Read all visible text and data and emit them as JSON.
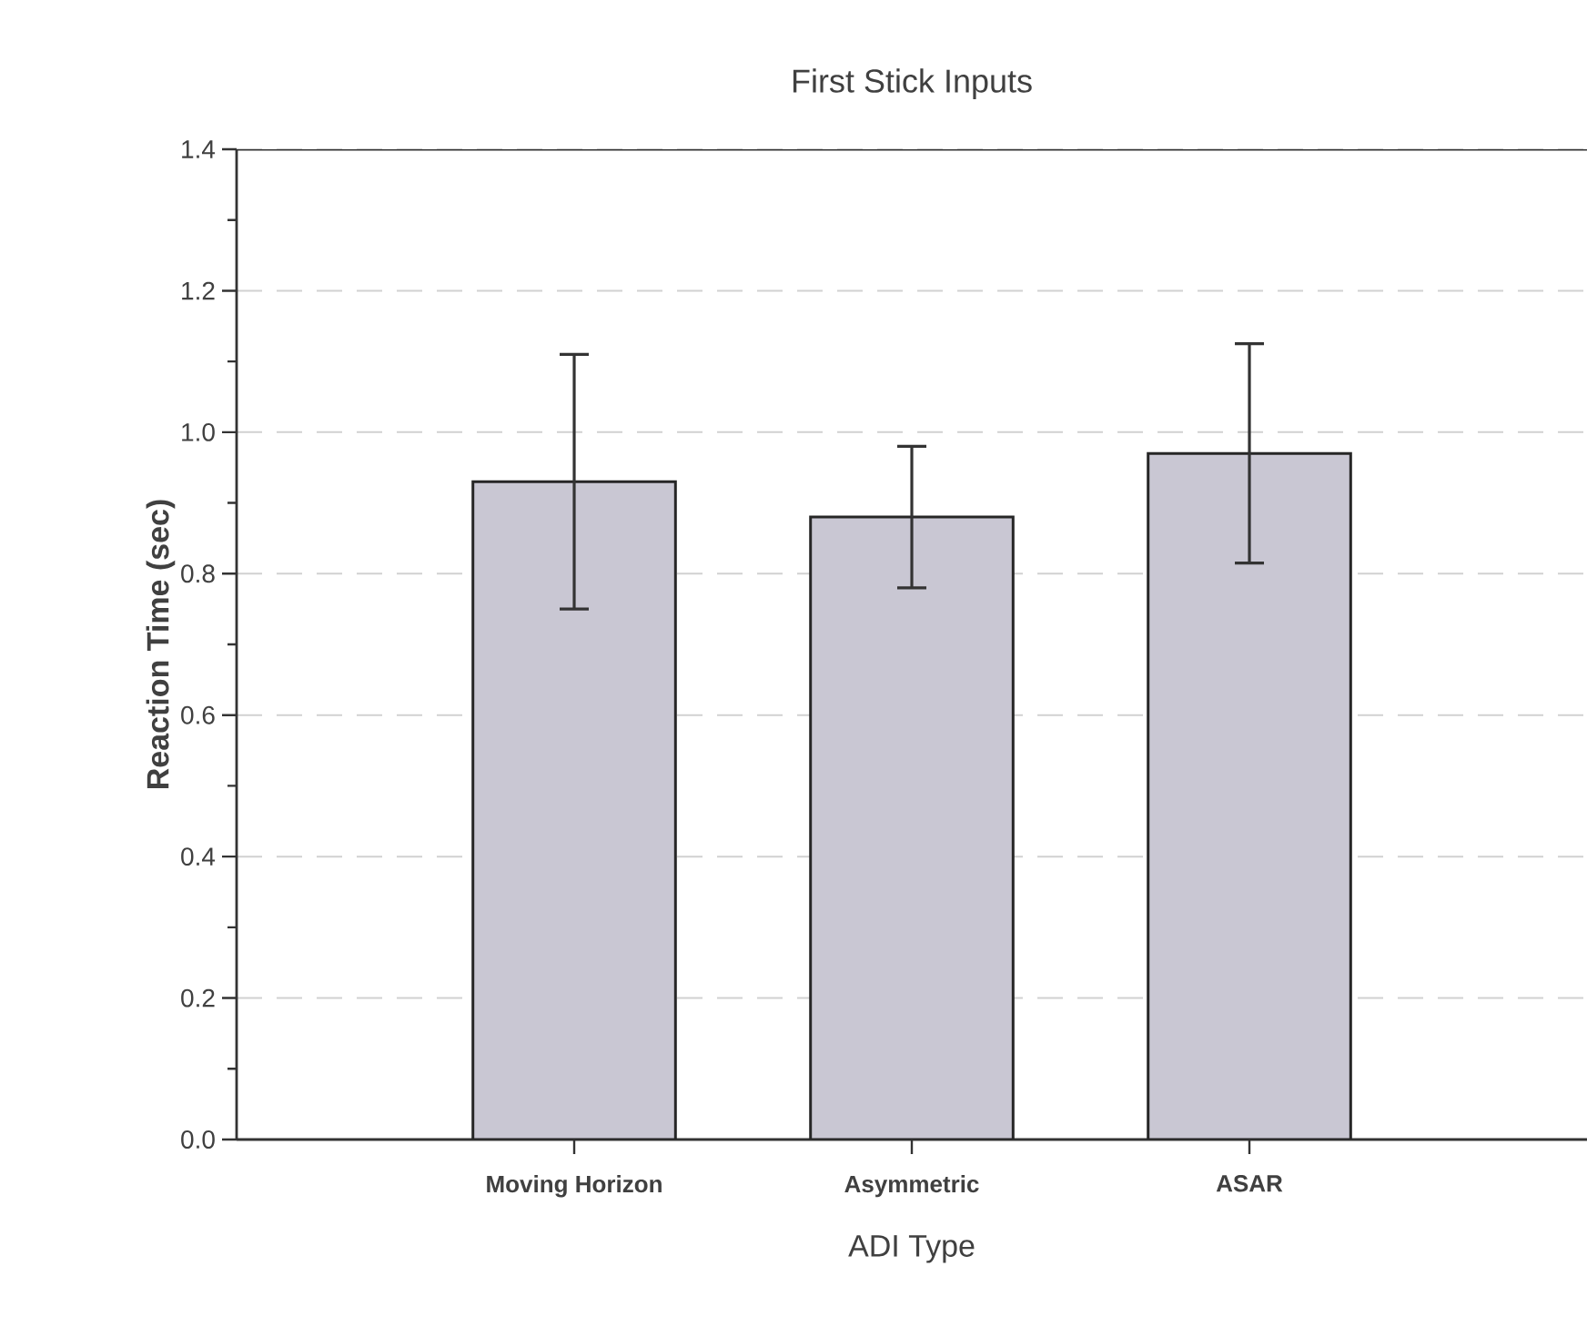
{
  "chart_data": {
    "type": "bar",
    "title": "First Stick Inputs",
    "xlabel": "ADI Type",
    "ylabel": "Reaction Time (sec)",
    "categories": [
      "Moving Horizon",
      "Asymmetric",
      "ASAR"
    ],
    "values": [
      0.93,
      0.88,
      0.97
    ],
    "errors": [
      0.18,
      0.1,
      0.155
    ],
    "color": "#c9c7d3",
    "ylim": [
      0,
      1.4
    ],
    "yticks": [
      {
        "value": 0,
        "label": "0.0"
      },
      {
        "value": 0.2,
        "label": "0.2"
      },
      {
        "value": 0.4,
        "label": "0.4"
      },
      {
        "value": 0.6,
        "label": "0.6"
      },
      {
        "value": 0.8,
        "label": "0.8"
      },
      {
        "value": 1.0,
        "label": "1.0"
      },
      {
        "value": 1.2,
        "label": "1.2"
      },
      {
        "value": 1.4,
        "label": "1.4"
      }
    ],
    "grid": "y"
  }
}
